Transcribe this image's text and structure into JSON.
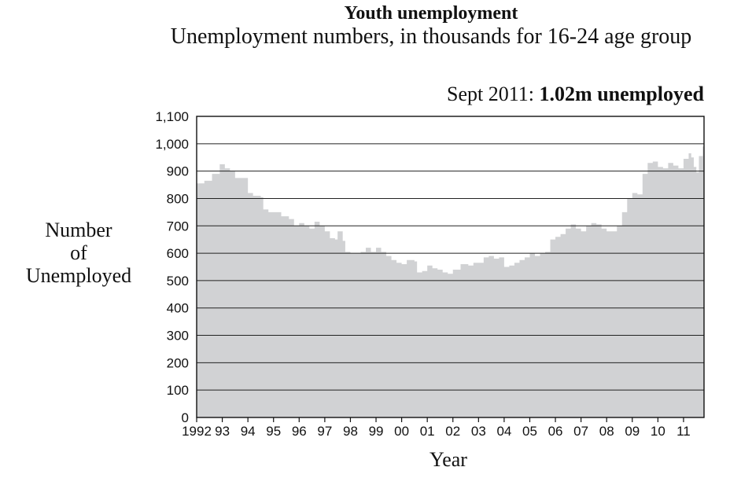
{
  "chart_data": {
    "type": "area",
    "title": "Youth unemployment",
    "subtitle": "Unemployment numbers, in thousands for 16-24 age group",
    "annotation": {
      "prefix": "Sept 2011: ",
      "highlight": "1.02m unemployed"
    },
    "ylabel_lines": [
      "Number",
      "of",
      "Unemployed"
    ],
    "xlabel": "Year",
    "ylim": [
      0,
      1100
    ],
    "yticks": [
      0,
      100,
      200,
      300,
      400,
      500,
      600,
      700,
      800,
      900,
      1000,
      1100
    ],
    "ytick_labels": [
      "0",
      "100",
      "200",
      "300",
      "400",
      "500",
      "600",
      "700",
      "800",
      "900",
      "1,000",
      "1,100"
    ],
    "xlim": [
      1992.0,
      2011.8
    ],
    "xticks": [
      1992,
      1993,
      1994,
      1995,
      1996,
      1997,
      1998,
      1999,
      2000,
      2001,
      2002,
      2003,
      2004,
      2005,
      2006,
      2007,
      2008,
      2009,
      2010,
      2011
    ],
    "xtick_labels": [
      "1992",
      "93",
      "94",
      "95",
      "96",
      "97",
      "98",
      "99",
      "00",
      "01",
      "02",
      "03",
      "04",
      "05",
      "06",
      "07",
      "08",
      "09",
      "10",
      "11"
    ],
    "grid": "horizontal",
    "series": [
      {
        "color": "#d1d2d4",
        "points": [
          [
            1992.0,
            855
          ],
          [
            1992.3,
            865
          ],
          [
            1992.6,
            890
          ],
          [
            1992.9,
            925
          ],
          [
            1993.1,
            910
          ],
          [
            1993.3,
            900
          ],
          [
            1993.5,
            875
          ],
          [
            1993.7,
            875
          ],
          [
            1993.9,
            875
          ],
          [
            1994.0,
            820
          ],
          [
            1994.2,
            810
          ],
          [
            1994.5,
            805
          ],
          [
            1994.6,
            760
          ],
          [
            1994.8,
            750
          ],
          [
            1995.0,
            750
          ],
          [
            1995.3,
            735
          ],
          [
            1995.6,
            725
          ],
          [
            1995.8,
            700
          ],
          [
            1996.0,
            710
          ],
          [
            1996.2,
            700
          ],
          [
            1996.4,
            690
          ],
          [
            1996.6,
            715
          ],
          [
            1996.8,
            700
          ],
          [
            1997.0,
            680
          ],
          [
            1997.2,
            655
          ],
          [
            1997.4,
            650
          ],
          [
            1997.5,
            680
          ],
          [
            1997.7,
            645
          ],
          [
            1997.8,
            605
          ],
          [
            1998.0,
            600
          ],
          [
            1998.2,
            600
          ],
          [
            1998.4,
            605
          ],
          [
            1998.6,
            620
          ],
          [
            1998.8,
            605
          ],
          [
            1999.0,
            620
          ],
          [
            1999.2,
            605
          ],
          [
            1999.4,
            590
          ],
          [
            1999.6,
            575
          ],
          [
            1999.8,
            565
          ],
          [
            2000.0,
            560
          ],
          [
            2000.2,
            575
          ],
          [
            2000.5,
            570
          ],
          [
            2000.6,
            530
          ],
          [
            2000.8,
            535
          ],
          [
            2001.0,
            555
          ],
          [
            2001.2,
            545
          ],
          [
            2001.4,
            540
          ],
          [
            2001.6,
            530
          ],
          [
            2001.8,
            525
          ],
          [
            2002.0,
            540
          ],
          [
            2002.3,
            560
          ],
          [
            2002.6,
            555
          ],
          [
            2002.8,
            565
          ],
          [
            2003.0,
            565
          ],
          [
            2003.2,
            585
          ],
          [
            2003.4,
            590
          ],
          [
            2003.6,
            580
          ],
          [
            2003.8,
            585
          ],
          [
            2004.0,
            550
          ],
          [
            2004.2,
            555
          ],
          [
            2004.4,
            565
          ],
          [
            2004.6,
            575
          ],
          [
            2004.8,
            585
          ],
          [
            2005.0,
            600
          ],
          [
            2005.2,
            590
          ],
          [
            2005.4,
            600
          ],
          [
            2005.6,
            605
          ],
          [
            2005.8,
            650
          ],
          [
            2006.0,
            660
          ],
          [
            2006.2,
            670
          ],
          [
            2006.4,
            690
          ],
          [
            2006.6,
            705
          ],
          [
            2006.8,
            690
          ],
          [
            2007.0,
            680
          ],
          [
            2007.2,
            700
          ],
          [
            2007.4,
            710
          ],
          [
            2007.6,
            705
          ],
          [
            2007.8,
            690
          ],
          [
            2008.0,
            680
          ],
          [
            2008.2,
            680
          ],
          [
            2008.4,
            700
          ],
          [
            2008.6,
            750
          ],
          [
            2008.8,
            800
          ],
          [
            2009.0,
            820
          ],
          [
            2009.2,
            815
          ],
          [
            2009.4,
            890
          ],
          [
            2009.6,
            930
          ],
          [
            2009.8,
            935
          ],
          [
            2010.0,
            915
          ],
          [
            2010.2,
            910
          ],
          [
            2010.4,
            930
          ],
          [
            2010.6,
            920
          ],
          [
            2010.8,
            910
          ],
          [
            2011.0,
            945
          ],
          [
            2011.2,
            965
          ],
          [
            2011.3,
            950
          ],
          [
            2011.4,
            915
          ],
          [
            2011.5,
            895
          ],
          [
            2011.6,
            955
          ],
          [
            2011.75,
            990
          ],
          [
            2011.8,
            1000
          ]
        ]
      }
    ]
  }
}
